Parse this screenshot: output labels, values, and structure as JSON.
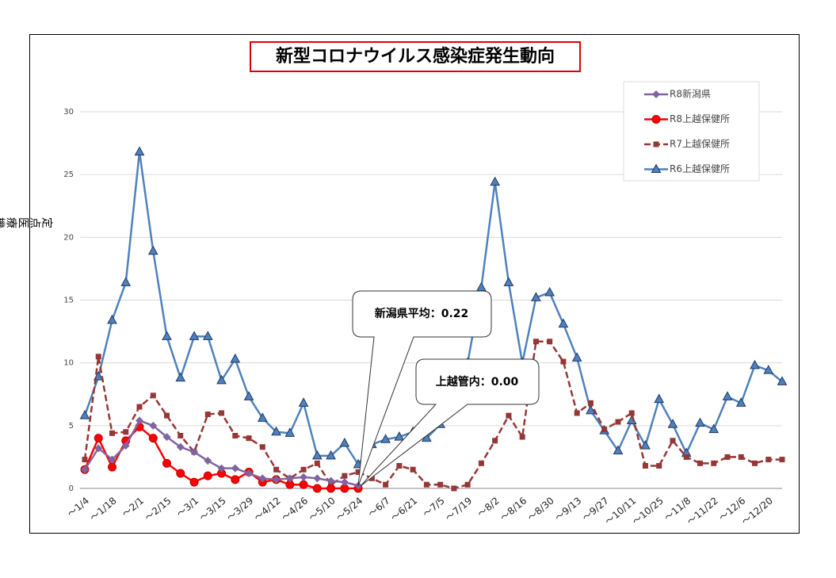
{
  "chart_data": {
    "type": "line",
    "title": "新型コロナウイルス感染症発生動向",
    "y_label": "定点医療機関の患者数の平均",
    "categories": [
      "～1/4",
      null,
      "～1/18",
      null,
      "～2/1",
      null,
      "～2/15",
      null,
      "～3/1",
      null,
      "～3/15",
      null,
      "～3/29",
      null,
      "～4/12",
      null,
      "～4/26",
      null,
      "～5/10",
      null,
      "～5/24",
      null,
      "～6/7",
      null,
      "～6/21",
      null,
      "～7/5",
      null,
      "～7/19",
      null,
      "～8/2",
      null,
      "～8/16",
      null,
      "～8/30",
      null,
      "～9/13",
      null,
      "～9/27",
      null,
      "～10/11",
      null,
      "～10/25",
      null,
      "～11/8",
      null,
      "～11/22",
      null,
      "～12/6",
      null,
      "～12/20",
      null
    ],
    "series": [
      {
        "name": "R8新潟県",
        "color": "#8064a2",
        "marker": "diamond",
        "values": [
          1.5,
          3.2,
          2.3,
          3.4,
          5.4,
          5.0,
          4.1,
          3.3,
          2.9,
          2.2,
          1.6,
          1.6,
          1.2,
          0.8,
          0.7,
          0.8,
          0.9,
          0.8,
          0.6,
          0.5,
          0.22,
          null,
          null,
          null,
          null,
          null,
          null,
          null,
          null,
          null,
          null,
          null,
          null,
          null,
          null,
          null,
          null,
          null,
          null,
          null,
          null,
          null,
          null,
          null,
          null,
          null,
          null,
          null,
          null,
          null,
          null,
          null
        ]
      },
      {
        "name": "R8上越保健所",
        "color": "#ff0000",
        "marker": "circle",
        "values": [
          1.5,
          4.0,
          1.7,
          3.8,
          4.9,
          4.0,
          2.0,
          1.2,
          0.5,
          1.0,
          1.2,
          0.7,
          1.3,
          0.5,
          0.7,
          0.3,
          0.3,
          0.0,
          0.0,
          0.0,
          0.0,
          null,
          null,
          null,
          null,
          null,
          null,
          null,
          null,
          null,
          null,
          null,
          null,
          null,
          null,
          null,
          null,
          null,
          null,
          null,
          null,
          null,
          null,
          null,
          null,
          null,
          null,
          null,
          null,
          null,
          null,
          null
        ]
      },
      {
        "name": "R7上越保健所",
        "color": "#953735",
        "marker": "square",
        "values": [
          2.3,
          10.5,
          4.4,
          4.5,
          6.5,
          7.4,
          5.8,
          4.2,
          2.9,
          5.9,
          6.0,
          4.2,
          4.0,
          3.3,
          1.5,
          0.8,
          1.5,
          2.0,
          0.3,
          1.0,
          1.3,
          0.8,
          0.3,
          1.8,
          1.5,
          0.3,
          0.3,
          0.0,
          0.3,
          2.0,
          3.8,
          5.8,
          4.1,
          11.7,
          11.7,
          10.1,
          6.0,
          6.8,
          4.7,
          5.3,
          6.0,
          1.8,
          1.8,
          3.8,
          2.5,
          2.0,
          2.0,
          2.5,
          2.5,
          2.0,
          2.3,
          2.3
        ]
      },
      {
        "name": "R6上越保健所",
        "color": "#4f81bd",
        "marker": "triangle",
        "values": [
          5.8,
          8.9,
          13.4,
          16.4,
          26.8,
          18.9,
          12.1,
          8.8,
          12.1,
          12.1,
          8.6,
          10.3,
          7.3,
          5.6,
          4.5,
          4.4,
          6.8,
          2.6,
          2.6,
          3.6,
          1.9,
          3.5,
          3.9,
          4.1,
          4.5,
          4.0,
          5.1,
          7.0,
          10.0,
          16.0,
          24.4,
          16.4,
          10.0,
          15.2,
          15.6,
          13.1,
          10.4,
          6.2,
          4.6,
          3.0,
          5.4,
          3.4,
          7.1,
          5.1,
          2.8,
          5.2,
          4.7,
          7.3,
          6.8,
          9.8,
          9.4,
          8.5
        ]
      }
    ],
    "ylim": [
      0,
      30
    ],
    "yticks": [
      0,
      5,
      10,
      15,
      20,
      25,
      30
    ],
    "grid": true,
    "legend": "upper right",
    "annotations": [
      "新潟県平均：0.22",
      "上越管内：0.00"
    ]
  }
}
